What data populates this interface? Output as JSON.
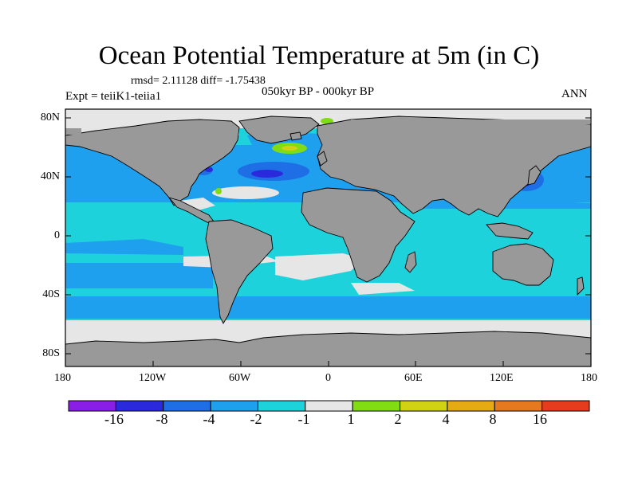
{
  "title": "Ocean Potential Temperature at 5m (in C)",
  "stats": "rmsd= 2.11128  diff= -1.75438",
  "expt": "Expt = teiiK1-teiia1",
  "period": "050kyr BP - 000kyr BP",
  "season": "ANN",
  "x_ticks": [
    "180",
    "120W",
    "60W",
    "0",
    "60E",
    "120E",
    "180"
  ],
  "y_ticks": [
    "80N",
    "40N",
    "0",
    "40S",
    "80S"
  ],
  "colorbar": {
    "colors": [
      "#8a1ee6",
      "#2a2adc",
      "#1e6ee6",
      "#1ea0ee",
      "#1ed2dc",
      "#e6e6e6",
      "#82dc14",
      "#d2d214",
      "#e6aa14",
      "#e6781e",
      "#e63c1e"
    ],
    "labels": [
      "-16",
      "-8",
      "-4",
      "-2",
      "-1",
      "1",
      "2",
      "4",
      "8",
      "16"
    ]
  },
  "palette": {
    "land": "#999999",
    "ocean": "#1ed2dc",
    "ice_neutral": "#e6e6e6",
    "light_blue": "#1ea0ee",
    "mid_blue": "#1e6ee6",
    "dark_blue": "#2a2adc",
    "green": "#82dc14",
    "yellow": "#d2d214"
  }
}
